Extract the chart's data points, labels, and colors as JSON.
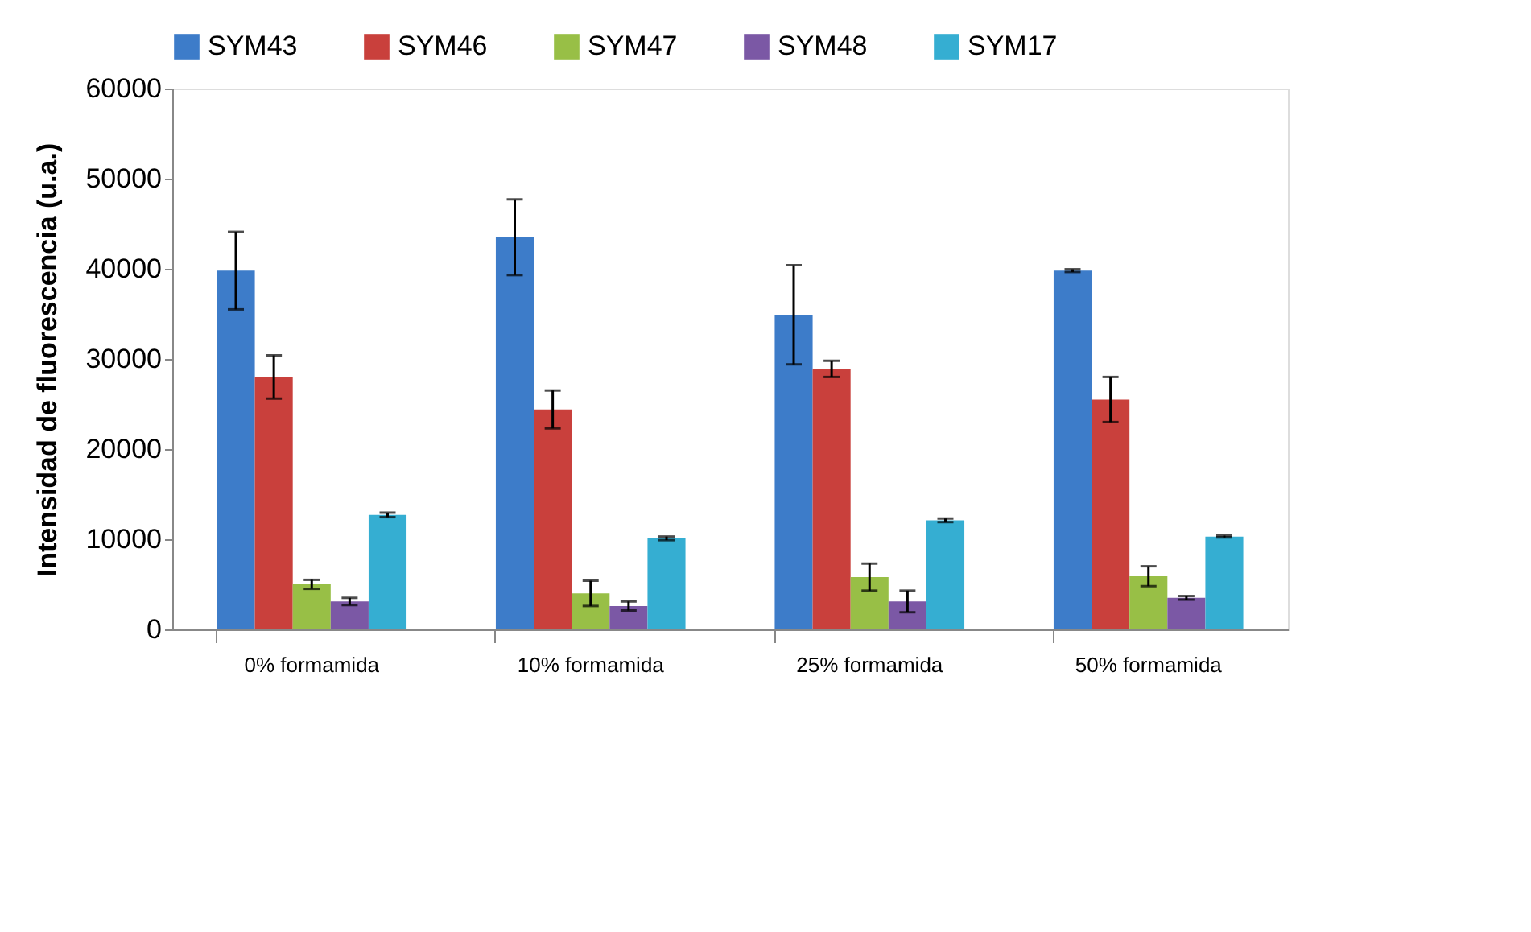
{
  "chart_data": {
    "type": "bar",
    "ylabel": "Intensidad de fluorescencia (u.a.)",
    "categories": [
      "0% formamida",
      "10% formamida",
      "25% formamida",
      "50% formamida"
    ],
    "series": [
      {
        "name": "SYM43",
        "color": "#3d7cc9",
        "values": [
          39800,
          43500,
          34900,
          39800
        ],
        "errors": [
          4300,
          4200,
          5500,
          150
        ]
      },
      {
        "name": "SYM46",
        "color": "#c9403c",
        "values": [
          28000,
          24400,
          28900,
          25500
        ],
        "errors": [
          2400,
          2100,
          900,
          2500
        ]
      },
      {
        "name": "SYM47",
        "color": "#98bf46",
        "values": [
          5000,
          4000,
          5800,
          5900
        ],
        "errors": [
          500,
          1400,
          1500,
          1100
        ]
      },
      {
        "name": "SYM48",
        "color": "#7b58a5",
        "values": [
          3100,
          2600,
          3100,
          3500
        ],
        "errors": [
          400,
          500,
          1200,
          200
        ]
      },
      {
        "name": "SYM17",
        "color": "#35aed2",
        "values": [
          12700,
          10100,
          12100,
          10300
        ],
        "errors": [
          250,
          200,
          200,
          100
        ]
      }
    ],
    "ylim": [
      0,
      60000
    ],
    "yticks": [
      0,
      10000,
      20000,
      30000,
      40000,
      50000,
      60000
    ],
    "grid": false,
    "legend": "top"
  }
}
